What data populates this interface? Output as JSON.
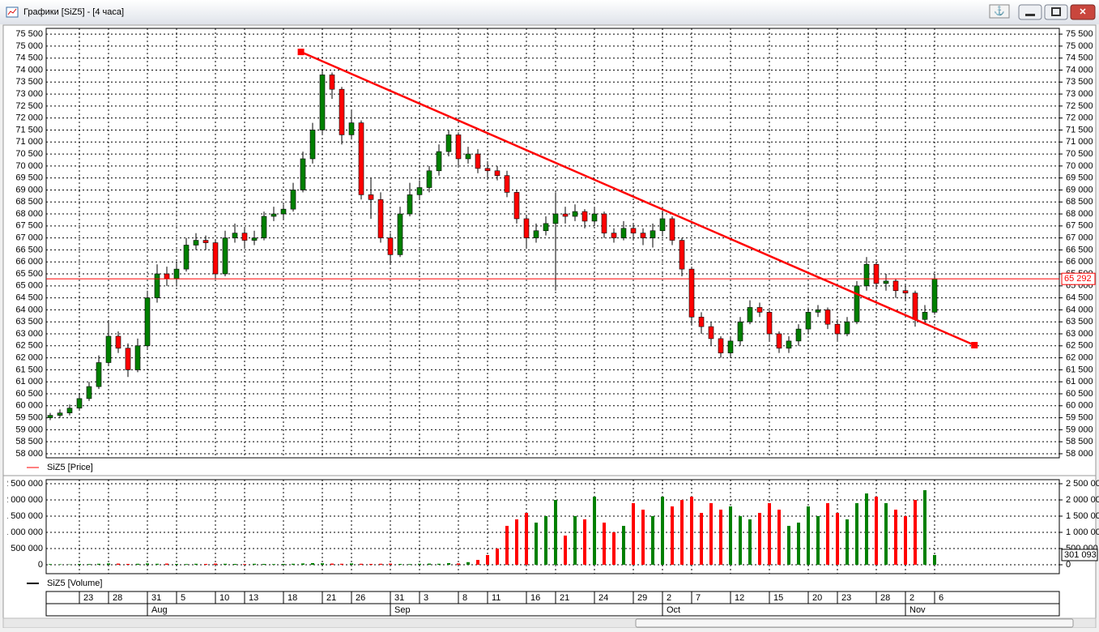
{
  "window": {
    "title": "Графики [SiZ5] - [4 часа]"
  },
  "chart_data": [
    {
      "type": "candlestick",
      "legend": "SiZ5 [Price]",
      "categories": [
        null,
        null,
        null,
        "23",
        null,
        null,
        "28",
        null,
        null,
        null,
        "31",
        null,
        null,
        "5",
        null,
        null,
        null,
        "10",
        null,
        null,
        "13",
        null,
        null,
        null,
        "18",
        null,
        null,
        null,
        "21",
        null,
        null,
        "26",
        null,
        null,
        null,
        "31",
        null,
        null,
        "3",
        null,
        null,
        null,
        "8",
        null,
        null,
        "11",
        null,
        null,
        null,
        "16",
        null,
        null,
        "21",
        null,
        null,
        null,
        "24",
        null,
        null,
        null,
        "29",
        null,
        null,
        "2",
        null,
        null,
        "7",
        null,
        null,
        null,
        "12",
        null,
        null,
        null,
        "15",
        null,
        null,
        null,
        "20",
        null,
        null,
        "23",
        null,
        null,
        null,
        "28",
        null,
        null,
        "2",
        null,
        null,
        "6"
      ],
      "month_labels": [
        null,
        null,
        null,
        null,
        null,
        null,
        null,
        null,
        null,
        null,
        "Aug",
        null,
        null,
        null,
        null,
        null,
        null,
        null,
        null,
        null,
        null,
        null,
        null,
        null,
        null,
        null,
        null,
        null,
        null,
        null,
        null,
        null,
        null,
        null,
        null,
        "Sep",
        null,
        null,
        null,
        null,
        null,
        null,
        null,
        null,
        null,
        null,
        null,
        null,
        null,
        null,
        null,
        null,
        null,
        null,
        null,
        null,
        null,
        null,
        null,
        null,
        null,
        null,
        null,
        "Oct",
        null,
        null,
        null,
        null,
        null,
        null,
        null,
        null,
        null,
        null,
        null,
        null,
        null,
        null,
        null,
        null,
        null,
        null,
        null,
        null,
        null,
        null,
        null,
        null,
        "Nov",
        null,
        null,
        null
      ],
      "open": [
        59500,
        59600,
        59700,
        59900,
        60300,
        60800,
        61800,
        62900,
        62400,
        61500,
        62500,
        64500,
        65500,
        65300,
        65700,
        66700,
        66900,
        66800,
        65500,
        67000,
        67200,
        66900,
        67000,
        67900,
        68000,
        68200,
        69000,
        70300,
        71500,
        73800,
        73200,
        71300,
        71800,
        68800,
        68600,
        67000,
        66300,
        68000,
        68800,
        69100,
        69800,
        70600,
        71300,
        70300,
        70500,
        69900,
        69800,
        69600,
        68900,
        67800,
        67000,
        67300,
        67600,
        68000,
        67900,
        68100,
        67700,
        68000,
        67200,
        67000,
        67400,
        67200,
        67000,
        67300,
        67800,
        66900,
        65700,
        63700,
        63300,
        62800,
        62200,
        62700,
        63500,
        64100,
        63900,
        63000,
        62400,
        62700,
        63200,
        63900,
        64000,
        63400,
        63000,
        63500,
        65000,
        65900,
        65100,
        65200,
        64800,
        64700,
        63600,
        63900
      ],
      "high": [
        59700,
        59850,
        60050,
        60500,
        61000,
        62100,
        63500,
        63100,
        62600,
        62800,
        64800,
        65900,
        65800,
        66000,
        67000,
        67200,
        67100,
        66900,
        67300,
        67600,
        67400,
        67300,
        68100,
        68300,
        68400,
        69300,
        70600,
        71800,
        74000,
        73900,
        73300,
        72300,
        71900,
        69500,
        68900,
        67200,
        68300,
        69300,
        69400,
        70000,
        70900,
        71500,
        71400,
        70800,
        70700,
        70200,
        70000,
        69800,
        69000,
        67900,
        67600,
        67900,
        68900,
        68300,
        68400,
        68200,
        68300,
        68100,
        67400,
        67700,
        67600,
        67400,
        67600,
        68100,
        67900,
        67000,
        65800,
        63900,
        63500,
        62900,
        62900,
        63700,
        64400,
        64300,
        64000,
        63100,
        62900,
        63400,
        64100,
        64200,
        64100,
        63600,
        63700,
        65200,
        66200,
        66000,
        65500,
        65300,
        65000,
        64800,
        64200,
        65500
      ],
      "low": [
        59400,
        59500,
        59600,
        59800,
        60200,
        60700,
        61700,
        62200,
        61200,
        61400,
        62400,
        64300,
        65000,
        65100,
        65600,
        66500,
        66500,
        65300,
        65400,
        66800,
        66600,
        66700,
        66900,
        67700,
        67800,
        68100,
        68900,
        70100,
        71300,
        72800,
        70900,
        71100,
        68600,
        67800,
        66800,
        65900,
        66200,
        67900,
        68600,
        68900,
        69600,
        70400,
        70000,
        70100,
        69700,
        69500,
        69400,
        68700,
        67600,
        66600,
        66800,
        67100,
        64800,
        67600,
        67700,
        67400,
        67500,
        67000,
        66800,
        66900,
        66900,
        66700,
        66600,
        67100,
        66700,
        65400,
        63400,
        63000,
        62500,
        62000,
        62000,
        62500,
        63400,
        63700,
        62700,
        62200,
        62200,
        62500,
        63000,
        63700,
        63200,
        62700,
        62900,
        63400,
        64800,
        64900,
        64800,
        64500,
        64400,
        63300,
        63400,
        63800
      ],
      "close": [
        59600,
        59700,
        59900,
        60300,
        60800,
        61800,
        62900,
        62400,
        61500,
        62500,
        64500,
        65500,
        65300,
        65700,
        66700,
        66900,
        66800,
        65500,
        67000,
        67200,
        66900,
        67000,
        67900,
        68000,
        68200,
        69000,
        70300,
        71500,
        73800,
        73200,
        71300,
        71800,
        68800,
        68600,
        67000,
        66300,
        68000,
        68800,
        69100,
        69800,
        70600,
        71300,
        70300,
        70500,
        69900,
        69800,
        69600,
        68900,
        67800,
        67000,
        67300,
        67600,
        68000,
        67900,
        68100,
        67700,
        68000,
        67200,
        67000,
        67400,
        67200,
        67000,
        67300,
        67800,
        66900,
        65700,
        63700,
        63300,
        62800,
        62200,
        62700,
        63500,
        64100,
        63900,
        63000,
        62400,
        62700,
        63200,
        63900,
        64000,
        63400,
        63000,
        63500,
        65000,
        65900,
        65100,
        65200,
        64800,
        64700,
        63600,
        63900,
        65292
      ],
      "up_color": "#008000",
      "down_color": "#ff0000",
      "ylim": [
        57830,
        75740
      ],
      "yticks": [
        {
          "value": 58000,
          "label": "58 000"
        },
        {
          "value": 58500,
          "label": "58 500"
        },
        {
          "value": 59000,
          "label": "59 000"
        },
        {
          "value": 59500,
          "label": "59 500"
        },
        {
          "value": 60000,
          "label": "60 000"
        },
        {
          "value": 60500,
          "label": "60 500"
        },
        {
          "value": 61000,
          "label": "61 000"
        },
        {
          "value": 61500,
          "label": "61 500"
        },
        {
          "value": 62000,
          "label": "62 000"
        },
        {
          "value": 62500,
          "label": "62 500"
        },
        {
          "value": 63000,
          "label": "63 000"
        },
        {
          "value": 63500,
          "label": "63 500"
        },
        {
          "value": 64000,
          "label": "64 000"
        },
        {
          "value": 64500,
          "label": "64 500"
        },
        {
          "value": 65000,
          "label": "65 000"
        },
        {
          "value": 65500,
          "label": "65 500"
        },
        {
          "value": 66000,
          "label": "66 000"
        },
        {
          "value": 66500,
          "label": "66 500"
        },
        {
          "value": 67000,
          "label": "67 000"
        },
        {
          "value": 67500,
          "label": "67 500"
        },
        {
          "value": 68000,
          "label": "68 000"
        },
        {
          "value": 68500,
          "label": "68 500"
        },
        {
          "value": 69000,
          "label": "69 000"
        },
        {
          "value": 69500,
          "label": "69 500"
        },
        {
          "value": 70000,
          "label": "70 000"
        },
        {
          "value": 70500,
          "label": "70 500"
        },
        {
          "value": 71000,
          "label": "71 000"
        },
        {
          "value": 71500,
          "label": "71 500"
        },
        {
          "value": 72000,
          "label": "72 000"
        },
        {
          "value": 72500,
          "label": "72 500"
        },
        {
          "value": 73000,
          "label": "73 000"
        },
        {
          "value": 73500,
          "label": "73 500"
        },
        {
          "value": 74000,
          "label": "74 000"
        },
        {
          "value": 74500,
          "label": "74 500"
        },
        {
          "value": 75000,
          "label": "75 000"
        },
        {
          "value": 75500,
          "label": "75 500"
        }
      ],
      "grid": true,
      "price_line": {
        "value": 65292,
        "label": "65 292",
        "color": "#ff0000"
      },
      "trendline": {
        "x": [
          25.8,
          95.1
        ],
        "y": [
          74757,
          62527
        ],
        "color": "#ff0000"
      }
    },
    {
      "type": "bar",
      "legend": "SiZ5 [Volume]",
      "values": [
        20000,
        15000,
        10000,
        25000,
        20000,
        30000,
        40000,
        35000,
        25000,
        30000,
        40000,
        30000,
        35000,
        25000,
        20000,
        30000,
        25000,
        35000,
        30000,
        25000,
        20000,
        30000,
        25000,
        20000,
        25000,
        30000,
        40000,
        50000,
        45000,
        35000,
        30000,
        40000,
        30000,
        25000,
        30000,
        35000,
        25000,
        20000,
        30000,
        35000,
        30000,
        50000,
        40000,
        80000,
        150000,
        300000,
        500000,
        1200000,
        1400000,
        1600000,
        1300000,
        1500000,
        2000000,
        900000,
        1500000,
        1400000,
        2100000,
        1300000,
        1000000,
        1200000,
        1900000,
        1700000,
        1500000,
        2100000,
        1800000,
        2000000,
        2100000,
        1600000,
        1900000,
        1700000,
        1800000,
        1500000,
        1400000,
        1600000,
        1900000,
        1700000,
        1200000,
        1300000,
        1800000,
        1500000,
        1900000,
        1600000,
        1400000,
        1900000,
        2200000,
        2100000,
        1900000,
        1700000,
        1500000,
        2000000,
        2300000,
        301093
      ],
      "ylim": [
        -275000,
        2625000
      ],
      "yticks": [
        0,
        {
          "value": 500000,
          "label": "500 000"
        },
        {
          "value": 1000000,
          "label": "1 000 000"
        },
        {
          "value": 1500000,
          "label": "1 500 000"
        },
        {
          "value": 2000000,
          "label": "2 000 000"
        },
        {
          "value": 2500000,
          "label": "2 500 000"
        }
      ],
      "grid": true,
      "last_value": {
        "value": 301093,
        "label": "301 093"
      }
    }
  ]
}
